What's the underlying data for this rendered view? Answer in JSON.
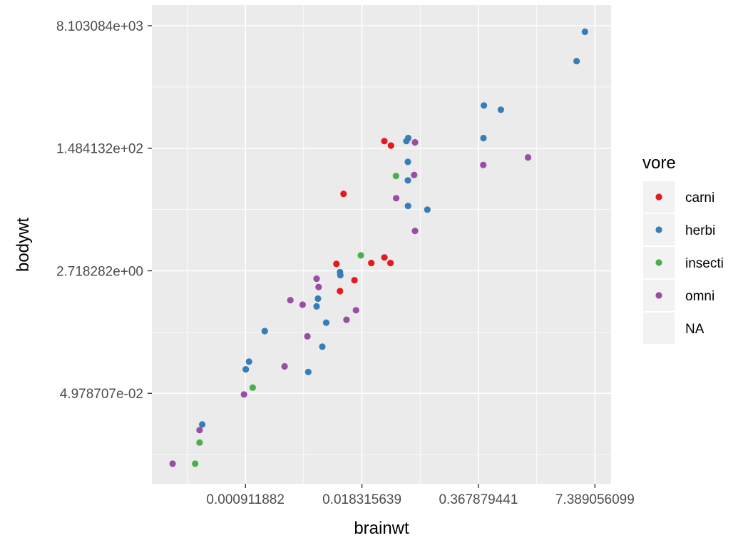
{
  "chart_data": {
    "type": "scatter",
    "xlabel": "brainwt",
    "ylabel": "bodywt",
    "x_scale": "log",
    "y_scale": "log",
    "xlim": [
      8.2e-05,
      11.2
    ],
    "ylim": [
      0.0026,
      8103.084
    ],
    "x_ticks": [
      0.000911882,
      0.018315639,
      0.367879441,
      7.389056099
    ],
    "x_tick_labels": [
      "0.000911882",
      "0.018315639",
      "0.367879441",
      "7.389056099"
    ],
    "y_ticks": [
      0.04978707,
      2.718282,
      148.4132,
      8103.084
    ],
    "y_tick_labels": [
      "4.978707e-02",
      "2.718282e+00",
      "1.484132e+02",
      "8.103084e+03"
    ],
    "grid": true,
    "legend": {
      "title": "vore",
      "position": "right",
      "entries": [
        "carni",
        "herbi",
        "insecti",
        "omni",
        "NA"
      ]
    },
    "colors": {
      "carni": "#E41A1C",
      "herbi": "#377EB8",
      "insecti": "#4DAF4A",
      "omni": "#984EA3",
      "NA": "#EBEBEB"
    },
    "points": [
      {
        "x": 5.712,
        "y": 6654,
        "vore": "herbi"
      },
      {
        "x": 4.603,
        "y": 2547,
        "vore": "herbi"
      },
      {
        "x": 0.655,
        "y": 521,
        "vore": "herbi"
      },
      {
        "x": 0.423,
        "y": 600,
        "vore": "herbi"
      },
      {
        "x": 0.419,
        "y": 207,
        "vore": "herbi"
      },
      {
        "x": 0.0575,
        "y": 187,
        "vore": "herbi"
      },
      {
        "x": 0.0598,
        "y": 52,
        "vore": "herbi"
      },
      {
        "x": 0.0986,
        "y": 20,
        "vore": "herbi"
      },
      {
        "x": 0.06,
        "y": 22.6,
        "vore": "herbi"
      },
      {
        "x": 0.0015,
        "y": 0.38,
        "vore": "herbi"
      },
      {
        "x": 0.0046,
        "y": 0.1,
        "vore": "herbi"
      },
      {
        "x": 0.0066,
        "y": 0.228,
        "vore": "herbi"
      },
      {
        "x": 0.0073,
        "y": 0.5,
        "vore": "herbi"
      },
      {
        "x": 0.0105,
        "y": 2.35,
        "vore": "herbi"
      },
      {
        "x": 0.0104,
        "y": 2.6,
        "vore": "herbi"
      },
      {
        "x": 0.0057,
        "y": 0.85,
        "vore": "herbi"
      },
      {
        "x": 0.0059,
        "y": 1.095,
        "vore": "herbi"
      },
      {
        "x": 0.00092,
        "y": 0.109,
        "vore": "herbi"
      },
      {
        "x": 0.001,
        "y": 0.14,
        "vore": "herbi"
      },
      {
        "x": 0.0003,
        "y": 0.018,
        "vore": "herbi"
      },
      {
        "x": 0.0598,
        "y": 95,
        "vore": "herbi"
      },
      {
        "x": 0.0603,
        "y": 207,
        "vore": "herbi"
      },
      {
        "x": 0.0326,
        "y": 187,
        "vore": "carni"
      },
      {
        "x": 0.0114,
        "y": 33.5,
        "vore": "carni"
      },
      {
        "x": 0.0233,
        "y": 3.5,
        "vore": "carni"
      },
      {
        "x": 0.0095,
        "y": 3.4,
        "vore": "carni"
      },
      {
        "x": 0.0151,
        "y": 2.0,
        "vore": "carni"
      },
      {
        "x": 0.0104,
        "y": 1.4,
        "vore": "carni"
      },
      {
        "x": 0.0327,
        "y": 4.2,
        "vore": "carni"
      },
      {
        "x": 0.0382,
        "y": 3.5,
        "vore": "carni"
      },
      {
        "x": 0.0387,
        "y": 162,
        "vore": "carni"
      },
      {
        "x": 0.00025,
        "y": 0.005,
        "vore": "insecti"
      },
      {
        "x": 0.00028,
        "y": 0.01,
        "vore": "insecti"
      },
      {
        "x": 0.0011,
        "y": 0.06,
        "vore": "insecti"
      },
      {
        "x": 0.0178,
        "y": 4.5,
        "vore": "insecti"
      },
      {
        "x": 0.044,
        "y": 60,
        "vore": "insecti"
      },
      {
        "x": 0.00014,
        "y": 0.005,
        "vore": "omni"
      },
      {
        "x": 0.00028,
        "y": 0.015,
        "vore": "omni"
      },
      {
        "x": 0.00088,
        "y": 0.048,
        "vore": "omni"
      },
      {
        "x": 0.0025,
        "y": 0.12,
        "vore": "omni"
      },
      {
        "x": 0.0045,
        "y": 0.32,
        "vore": "omni"
      },
      {
        "x": 0.00398,
        "y": 0.9,
        "vore": "omni"
      },
      {
        "x": 0.0029,
        "y": 1.04,
        "vore": "omni"
      },
      {
        "x": 0.006,
        "y": 1.6,
        "vore": "omni"
      },
      {
        "x": 0.0057,
        "y": 2.1,
        "vore": "omni"
      },
      {
        "x": 0.0123,
        "y": 0.55,
        "vore": "omni"
      },
      {
        "x": 0.0157,
        "y": 0.75,
        "vore": "omni"
      },
      {
        "x": 0.0442,
        "y": 29,
        "vore": "omni"
      },
      {
        "x": 0.0718,
        "y": 10,
        "vore": "omni"
      },
      {
        "x": 0.0702,
        "y": 62,
        "vore": "omni"
      },
      {
        "x": 0.0718,
        "y": 180,
        "vore": "omni"
      },
      {
        "x": 0.416,
        "y": 86,
        "vore": "omni"
      },
      {
        "x": 1.32,
        "y": 110,
        "vore": "omni"
      }
    ]
  }
}
